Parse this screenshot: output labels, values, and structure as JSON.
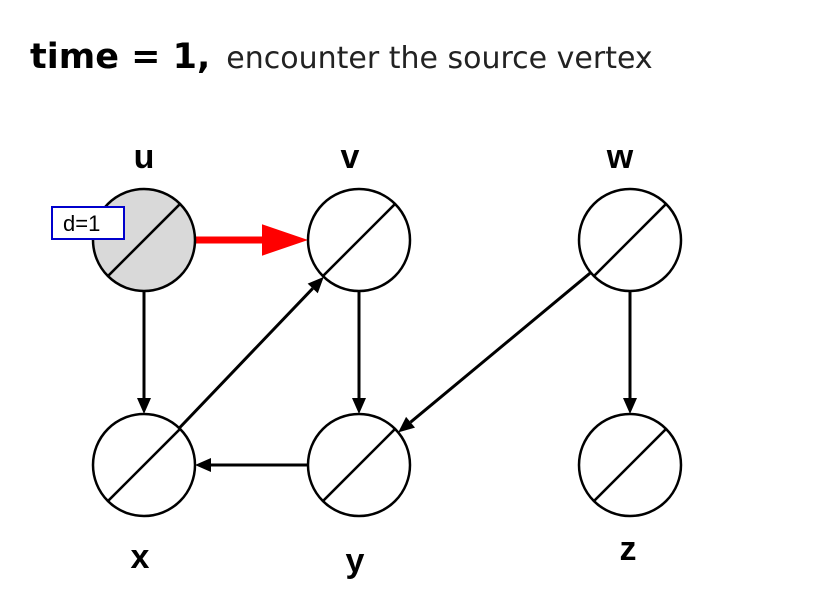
{
  "title": {
    "bold": "time = 1,",
    "rest": "encounter the source vertex"
  },
  "vertices": [
    {
      "id": "u",
      "label": "u",
      "state": "discovered",
      "annotation": "d=1"
    },
    {
      "id": "v",
      "label": "v",
      "state": "undiscovered"
    },
    {
      "id": "w",
      "label": "w",
      "state": "undiscovered"
    },
    {
      "id": "x",
      "label": "x",
      "state": "undiscovered"
    },
    {
      "id": "y",
      "label": "y",
      "state": "undiscovered"
    },
    {
      "id": "z",
      "label": "z",
      "state": "undiscovered"
    }
  ],
  "edges": [
    {
      "from": "u",
      "to": "v",
      "highlighted": true
    },
    {
      "from": "u",
      "to": "x",
      "highlighted": false
    },
    {
      "from": "x",
      "to": "v",
      "highlighted": false
    },
    {
      "from": "v",
      "to": "y",
      "highlighted": false
    },
    {
      "from": "y",
      "to": "x",
      "highlighted": false
    },
    {
      "from": "w",
      "to": "y",
      "highlighted": false
    },
    {
      "from": "w",
      "to": "z",
      "highlighted": false
    }
  ],
  "colors": {
    "discovered_fill": "#d9d9d9",
    "undiscovered_fill": "#ffffff",
    "highlight_edge": "#ff0000",
    "edge": "#000000",
    "annotation_border": "#0000cc"
  }
}
